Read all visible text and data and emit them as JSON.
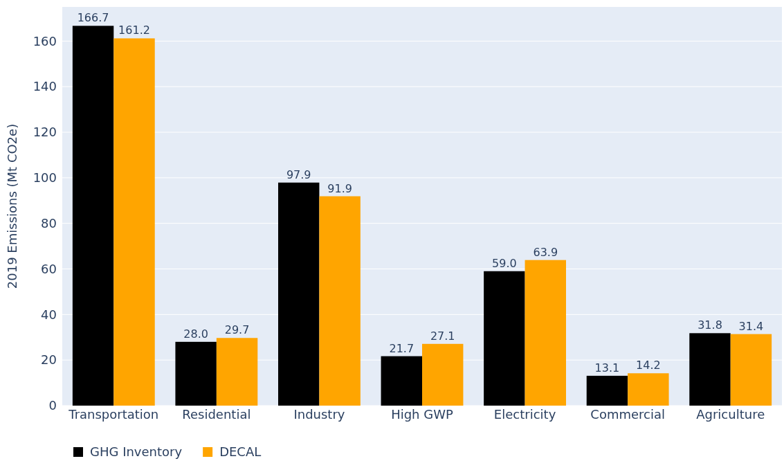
{
  "chart_data": {
    "type": "bar",
    "ylabel": "2019 Emissions (Mt CO2e)",
    "categories": [
      "Transportation",
      "Residential",
      "Industry",
      "High GWP",
      "Electricity",
      "Commercial",
      "Agriculture"
    ],
    "series": [
      {
        "name": "GHG Inventory",
        "color": "#000000",
        "values": [
          166.7,
          28.0,
          97.9,
          21.7,
          59.0,
          13.1,
          31.8
        ],
        "value_labels": [
          "166.7",
          "28.0",
          "97.9",
          "21.7",
          "59.0",
          "13.1",
          "31.8"
        ]
      },
      {
        "name": "DECAL",
        "color": "#ffa500",
        "values": [
          161.2,
          29.7,
          91.9,
          27.1,
          63.9,
          14.2,
          31.4
        ],
        "value_labels": [
          "161.2",
          "29.7",
          "91.9",
          "27.1",
          "63.9",
          "14.2",
          "31.4"
        ]
      }
    ],
    "ylim": [
      0,
      175
    ],
    "yticks": [
      0,
      20,
      40,
      60,
      80,
      100,
      120,
      140,
      160
    ],
    "grid": "y",
    "legend": "bottom left"
  }
}
